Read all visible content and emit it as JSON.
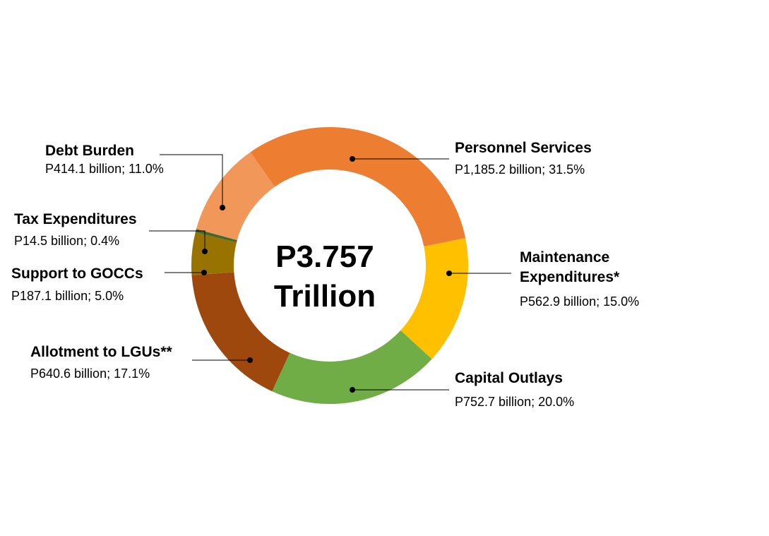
{
  "chart_data": {
    "type": "pie",
    "variant": "donut",
    "center_label": [
      "P3.757",
      "Trillion"
    ],
    "slices": [
      {
        "name": "Personnel Services",
        "value_label": "P1,185.2 billion",
        "pct_label": "31.5%",
        "value": 1185.2,
        "percent": 31.5,
        "color": "#ed7d31"
      },
      {
        "name": "Maintenance Expenditures*",
        "name_lines": [
          "Maintenance",
          "Expenditures*"
        ],
        "value_label": "P562.9 billion",
        "pct_label": "15.0%",
        "value": 562.9,
        "percent": 15.0,
        "color": "#ffc000"
      },
      {
        "name": "Capital Outlays",
        "value_label": "P752.7 billion",
        "pct_label": "20.0%",
        "value": 752.7,
        "percent": 20.0,
        "color": "#70ad47"
      },
      {
        "name": "Allotment to LGUs**",
        "value_label": "P640.6 billion",
        "pct_label": "17.1%",
        "value": 640.6,
        "percent": 17.1,
        "color": "#9e480e"
      },
      {
        "name": "Support to GOCCs",
        "value_label": "P187.1 billion",
        "pct_label": "5.0%",
        "value": 187.1,
        "percent": 5.0,
        "color": "#997300"
      },
      {
        "name": "Tax Expenditures",
        "value_label": "P14.5 billion",
        "pct_label": "0.4%",
        "value": 14.5,
        "percent": 0.4,
        "color": "#43682b"
      },
      {
        "name": "Debt Burden",
        "value_label": "P414.1 billion",
        "pct_label": "11.0%",
        "value": 414.1,
        "percent": 11.0,
        "color": "#f1975a"
      }
    ]
  }
}
